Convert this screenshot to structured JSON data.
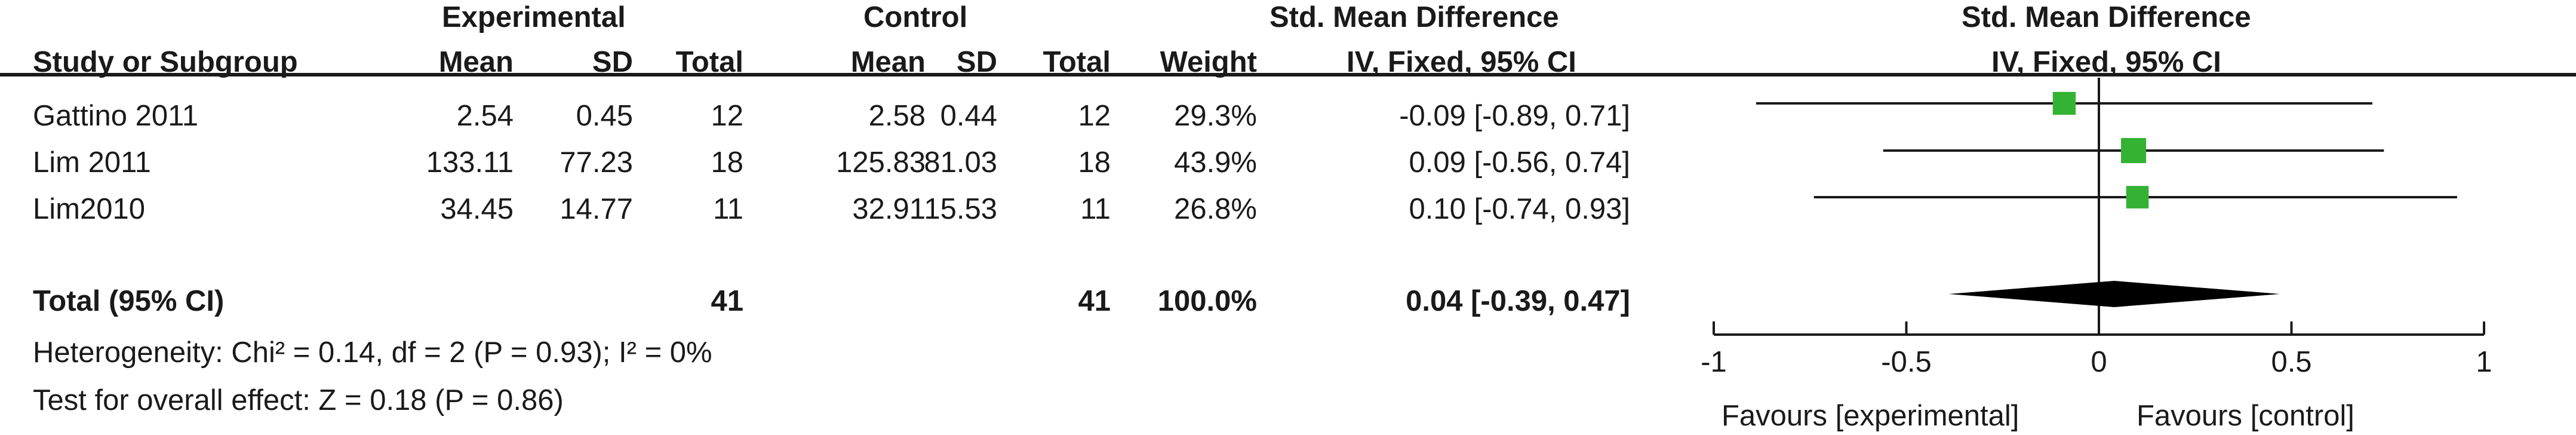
{
  "headers": {
    "experimental": "Experimental",
    "control": "Control",
    "smd_left": "Std. Mean Difference",
    "smd_right": "Std. Mean Difference",
    "study": "Study or Subgroup",
    "mean_e": "Mean",
    "sd_e": "SD",
    "total_e": "Total",
    "mean_c": "Mean",
    "sd_c": "SD",
    "total_c": "Total",
    "weight": "Weight",
    "method_left": "IV, Fixed, 95% CI",
    "method_right": "IV, Fixed, 95% CI"
  },
  "studies": [
    {
      "name": "Gattino 2011",
      "mean_e": "2.54",
      "sd_e": "0.45",
      "total_e": "12",
      "mean_c": "2.58",
      "sd_c": "0.44",
      "total_c": "12",
      "weight": "29.3%",
      "ci_text": "-0.09 [-0.89, 0.71]"
    },
    {
      "name": "Lim 2011",
      "mean_e": "133.11",
      "sd_e": "77.23",
      "total_e": "18",
      "mean_c": "125.83",
      "sd_c": "81.03",
      "total_c": "18",
      "weight": "43.9%",
      "ci_text": "0.09 [-0.56, 0.74]"
    },
    {
      "name": "Lim2010",
      "mean_e": "34.45",
      "sd_e": "14.77",
      "total_e": "11",
      "mean_c": "32.91",
      "sd_c": "15.53",
      "total_c": "11",
      "weight": "26.8%",
      "ci_text": "0.10 [-0.74, 0.93]"
    }
  ],
  "total": {
    "name": "Total (95% CI)",
    "total_e": "41",
    "total_c": "41",
    "weight": "100.0%",
    "ci_text": "0.04 [-0.39, 0.47]"
  },
  "heterogeneity": "Heterogeneity: Chi² = 0.14, df = 2 (P = 0.93); I² = 0%",
  "overall_effect": "Test for overall effect: Z = 0.18 (P = 0.86)",
  "axis": {
    "favours_left": "Favours [experimental]",
    "favours_right": "Favours [control]"
  },
  "colors": {
    "marker": "#33b233",
    "line": "#1a1a1a",
    "diamond": "#000000"
  },
  "chart_data": {
    "type": "forest",
    "xlim": [
      -1,
      1
    ],
    "ticks": [
      -1,
      -0.5,
      0,
      0.5,
      1
    ],
    "tick_labels": [
      "-1",
      "-0.5",
      "0",
      "0.5",
      "1"
    ],
    "studies": [
      {
        "name": "Gattino 2011",
        "est": -0.09,
        "lo": -0.89,
        "hi": 0.71,
        "weight": 29.3
      },
      {
        "name": "Lim 2011",
        "est": 0.09,
        "lo": -0.56,
        "hi": 0.74,
        "weight": 43.9
      },
      {
        "name": "Lim2010",
        "est": 0.1,
        "lo": -0.74,
        "hi": 0.93,
        "weight": 26.8
      }
    ],
    "pooled": {
      "est": 0.04,
      "lo": -0.39,
      "hi": 0.47
    }
  }
}
